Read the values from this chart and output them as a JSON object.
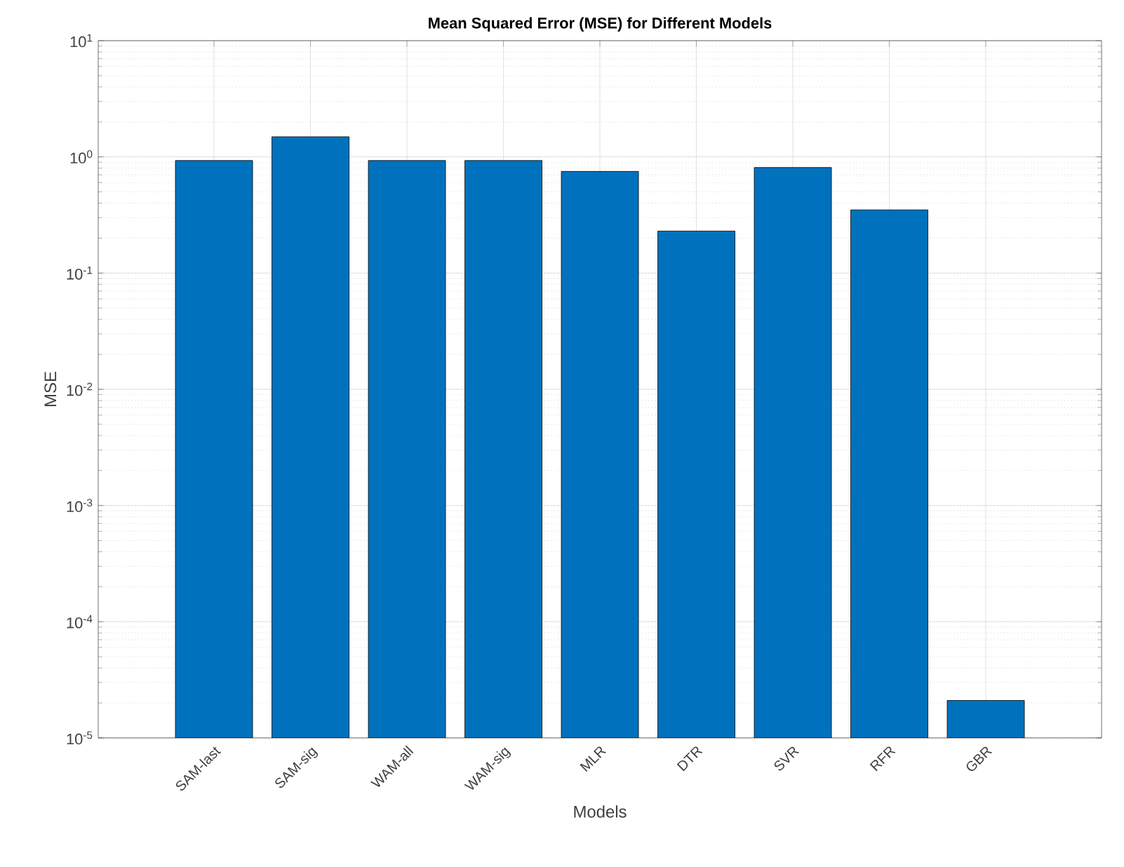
{
  "chart_data": {
    "type": "bar",
    "title": "Mean Squared Error (MSE) for Different Models",
    "xlabel": "Models",
    "ylabel": "MSE",
    "categories": [
      "SAM-last",
      "SAM-sig",
      "WAM-all",
      "WAM-sig",
      "MLR",
      "DTR",
      "SVR",
      "RFR",
      "GBR"
    ],
    "values": [
      0.93,
      1.49,
      0.93,
      0.93,
      0.75,
      0.23,
      0.81,
      0.35,
      2.1e-05
    ],
    "color": "#0072bd",
    "log": "y",
    "grid": true,
    "ylim": [
      1e-05,
      10
    ],
    "yticks": [
      {
        "value": 1e-05,
        "label": "10$^{-5}$"
      },
      {
        "value": 0.0001,
        "label": "10$^{-4}$"
      },
      {
        "value": 0.001,
        "label": "10$^{-3}$"
      },
      {
        "value": 0.01,
        "label": "10$^{-2}$"
      },
      {
        "value": 0.1,
        "label": "10$^{-1}$"
      },
      {
        "value": 1,
        "label": "10$^{0}$"
      },
      {
        "value": 10,
        "label": "10$^{1}$"
      }
    ]
  }
}
